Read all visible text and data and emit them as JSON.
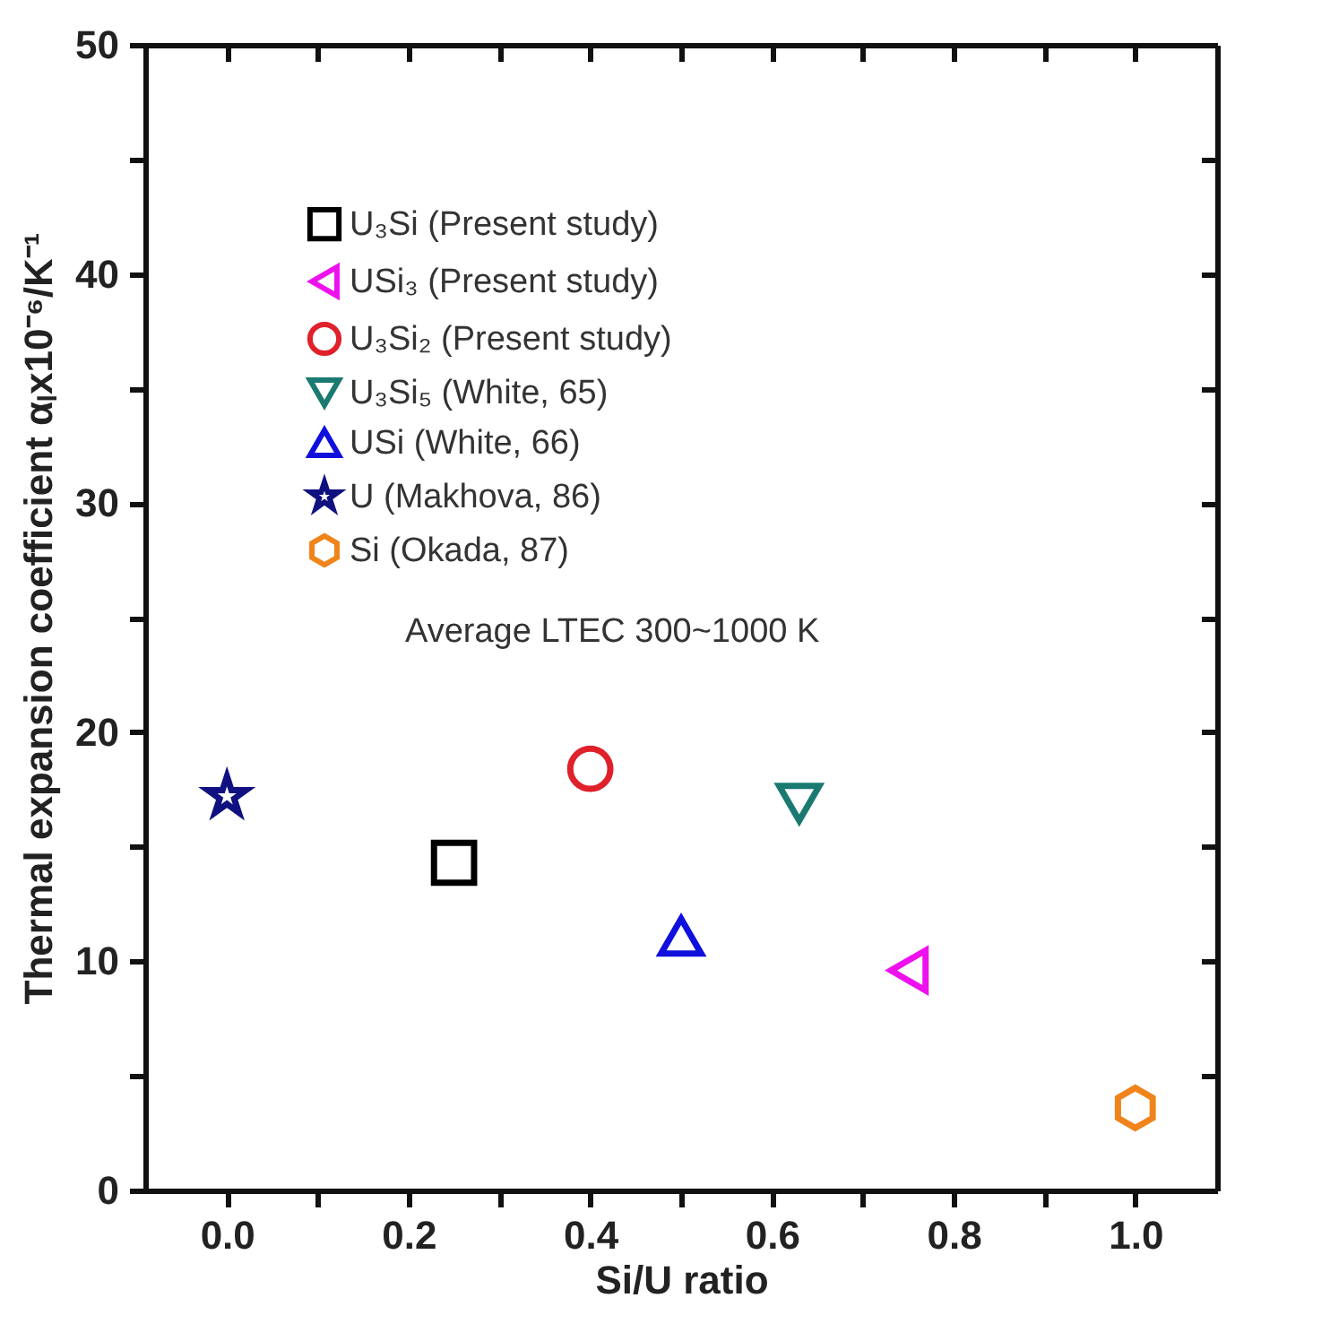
{
  "chart_data": {
    "type": "scatter",
    "xlabel": "Si/U ratio",
    "ylabel": "Thermal expansion coefficient αₗx10⁻⁶/K⁻¹",
    "xlim": [
      -0.09,
      1.09
    ],
    "ylim": [
      0,
      50
    ],
    "xticks": [
      {
        "value": 0,
        "label": "0.0"
      },
      {
        "value": 0.1,
        "label": null
      },
      {
        "value": 0.2,
        "label": "0.2"
      },
      {
        "value": 0.3,
        "label": null
      },
      {
        "value": 0.4,
        "label": "0.4"
      },
      {
        "value": 0.5,
        "label": null
      },
      {
        "value": 0.6,
        "label": "0.6"
      },
      {
        "value": 0.7,
        "label": null
      },
      {
        "value": 0.8,
        "label": "0.8"
      },
      {
        "value": 0.9,
        "label": null
      },
      {
        "value": 1,
        "label": "1.0"
      }
    ],
    "yticks": [
      0,
      {
        "value": 5,
        "label": null
      },
      10,
      {
        "value": 15,
        "label": null
      },
      20,
      {
        "value": 25,
        "label": null
      },
      30,
      {
        "value": 35,
        "label": null
      },
      40,
      {
        "value": 45,
        "label": null
      },
      50
    ],
    "grid": false,
    "legend": "top left",
    "annotations": [
      "Average LTEC 300~1000 K"
    ],
    "series": [
      {
        "name": "U₃Si (Present study)",
        "color": "#000000",
        "marker": "square",
        "x": [
          0.25
        ],
        "values": [
          14.3
        ]
      },
      {
        "name": "USi₃ (Present study)",
        "color": "#ee11ee",
        "marker": "triangle-left",
        "x": [
          0.75
        ],
        "values": [
          9.6
        ]
      },
      {
        "name": "U₃Si₂ (Present study)",
        "color": "#e0202a",
        "marker": "circle",
        "x": [
          0.4
        ],
        "values": [
          18.4
        ]
      },
      {
        "name": "U₃Si₅ (White, 65)",
        "color": "#1a7a72",
        "marker": "triangle-down",
        "x": [
          0.63
        ],
        "values": [
          16.9
        ]
      },
      {
        "name": "USi (White, 66)",
        "color": "#1010dd",
        "marker": "triangle-up",
        "x": [
          0.5
        ],
        "values": [
          11.1
        ]
      },
      {
        "name": "U (Makhova, 86)",
        "color": "#101080",
        "marker": "star",
        "x": [
          0
        ],
        "values": [
          17.2
        ]
      },
      {
        "name": "Si (Okada, 87)",
        "color": "#f0841a",
        "x": [
          1
        ],
        "values": [
          3.6
        ]
      }
    ]
  }
}
